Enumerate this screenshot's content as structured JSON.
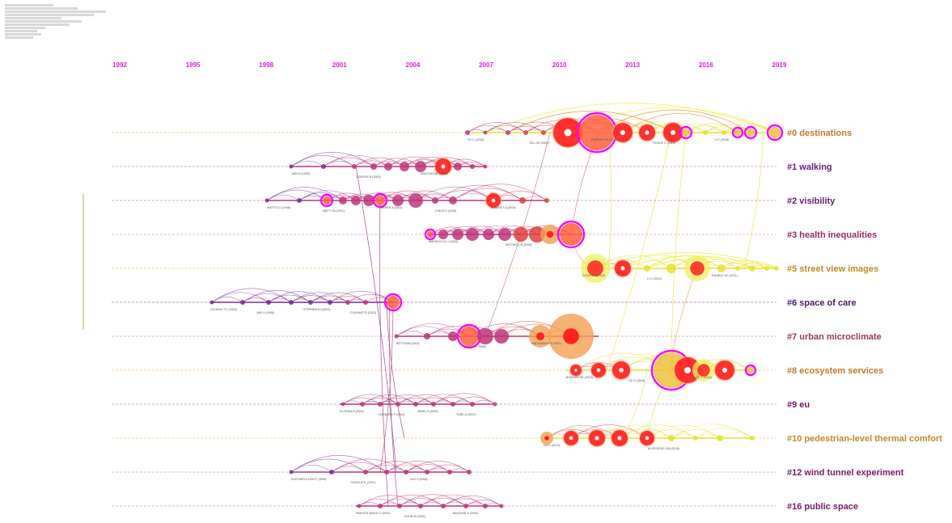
{
  "years": [
    "1992",
    "1995",
    "1998",
    "2001",
    "2004",
    "2007",
    "2010",
    "2013",
    "2016",
    "2019"
  ],
  "colors": {
    "year_label": "#e020e0",
    "old": "#7a2a9a",
    "mid": "#c0357a",
    "new": "#f0f020",
    "hot": "#ff2020",
    "ring": "#ff00ff",
    "orange": "#f5a050"
  },
  "clusters": [
    {
      "id": "c0",
      "label": "#0 destinations",
      "color": "#c8782a"
    },
    {
      "id": "c1",
      "label": "#1 walking",
      "color": "#6a1a7a"
    },
    {
      "id": "c2",
      "label": "#2 visibility",
      "color": "#6a1a7a"
    },
    {
      "id": "c3",
      "label": "#3 health inequalities",
      "color": "#9a2a6a"
    },
    {
      "id": "c5",
      "label": "#5 street view images",
      "color": "#c8882a"
    },
    {
      "id": "c6",
      "label": "#6 space of care",
      "color": "#4a1a6a"
    },
    {
      "id": "c7",
      "label": "#7 urban microclimate",
      "color": "#9a3a5a"
    },
    {
      "id": "c8",
      "label": "#8 ecosystem services",
      "color": "#c8782a"
    },
    {
      "id": "c9",
      "label": "#9 eu",
      "color": "#6a1a6a"
    },
    {
      "id": "c10",
      "label": "#10 pedestrian-level thermal comfort",
      "color": "#c8882a"
    },
    {
      "id": "c12",
      "label": "#12 wind tunnel experiment",
      "color": "#7a1a6a"
    },
    {
      "id": "c16",
      "label": "#16 public space",
      "color": "#7a1a6a"
    }
  ],
  "node_labels": [
    {
      "cluster": "c0",
      "text": "YU C (2008)"
    },
    {
      "cluster": "c0",
      "text": "GILL SE (2007)"
    },
    {
      "cluster": "c0",
      "text": "BOWLER DE (2010)"
    },
    {
      "cluster": "c0",
      "text": "ROSCE C (2016)"
    },
    {
      "cluster": "c0",
      "text": "LI Y (2018)"
    },
    {
      "cluster": "c1",
      "text": "JIAN H (1999)"
    },
    {
      "cluster": "c1",
      "text": "COOPER R (2003)"
    },
    {
      "cluster": "c1",
      "text": "SAELENS BE (2003)"
    },
    {
      "cluster": "c2",
      "text": "WATTS DJ (1998)"
    },
    {
      "cluster": "c2",
      "text": "BATTY M (2001)"
    },
    {
      "cluster": "c2",
      "text": "TURNER A (2001)"
    },
    {
      "cluster": "c2",
      "text": "LYNCH K (2005)"
    },
    {
      "cluster": "c2",
      "text": "CLAUSET A (2009)"
    },
    {
      "cluster": "c3",
      "text": "MARKEVYCH I (2005)"
    },
    {
      "cluster": "c3",
      "text": "MITCHELL R (2008)"
    },
    {
      "cluster": "c5",
      "text": "GONG FY (2018)"
    },
    {
      "cluster": "c5",
      "text": "LI X (2015)"
    },
    {
      "cluster": "c5",
      "text": "RUNDLE AG (2011)"
    },
    {
      "cluster": "c6",
      "text": "OCHENG TC (2002)"
    },
    {
      "cluster": "c6",
      "text": "BIKI H (1996)"
    },
    {
      "cluster": "c6",
      "text": "STEPHEN AJ (2001)"
    },
    {
      "cluster": "c6",
      "text": "COURANT R (2002)"
    },
    {
      "cluster": "c7",
      "text": "BOTTEMA (2003)"
    },
    {
      "cluster": "c7",
      "text": "MAYER H (2006)"
    },
    {
      "cluster": "c7",
      "text": "MATZARAKIS A (2010)"
    },
    {
      "cluster": "c8",
      "text": "BOWLER DE (2010)"
    },
    {
      "cluster": "c8",
      "text": "LIU S (2015)"
    },
    {
      "cluster": "c8",
      "text": "ZOLCH T (2016)"
    },
    {
      "cluster": "c9",
      "text": "FLORIDA R (2002)"
    },
    {
      "cluster": "c9",
      "text": "HUBBARD P (2004)"
    },
    {
      "cluster": "c9",
      "text": "WARD K (2006)"
    },
    {
      "cluster": "c9",
      "text": "TURK A (2007)"
    },
    {
      "cluster": "c10",
      "text": "NG E (2010)"
    },
    {
      "cluster": "c10",
      "text": "ALGECIRAS JAA (2016)"
    },
    {
      "cluster": "c12",
      "text": "KASTNER-KLEIN P (1999)"
    },
    {
      "cluster": "c12",
      "text": "CHOW WTL (2001)"
    },
    {
      "cluster": "c12",
      "text": "LUO Z (2008)"
    },
    {
      "cluster": "c16",
      "text": "PAINTER AMICK C (2003)"
    },
    {
      "cluster": "c16",
      "text": "KOHN M (2004)"
    },
    {
      "cluster": "c16",
      "text": "BALDWIN S (2003)"
    }
  ]
}
